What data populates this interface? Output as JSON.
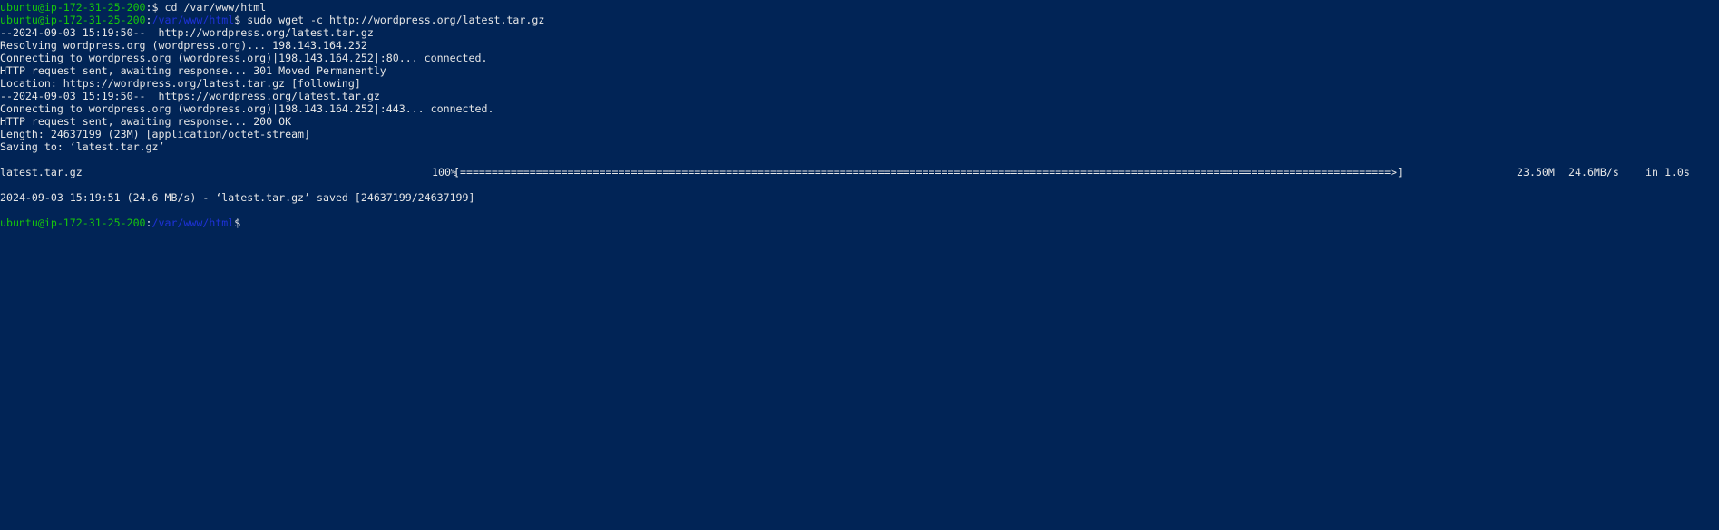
{
  "prompts": [
    {
      "user": "ubuntu@ip-172-31-25-200",
      "sep": ":",
      "path": "",
      "symbol": "$ ",
      "command": "cd /var/www/html"
    },
    {
      "user": "ubuntu@ip-172-31-25-200",
      "sep": ":",
      "path": "/var/www/html",
      "symbol": "$ ",
      "command": "sudo wget -c http://wordpress.org/latest.tar.gz"
    }
  ],
  "output": [
    "--2024-09-03 15:19:50--  http://wordpress.org/latest.tar.gz",
    "Resolving wordpress.org (wordpress.org)... 198.143.164.252",
    "Connecting to wordpress.org (wordpress.org)|198.143.164.252|:80... connected.",
    "HTTP request sent, awaiting response... 301 Moved Permanently",
    "Location: https://wordpress.org/latest.tar.gz [following]",
    "--2024-09-03 15:19:50--  https://wordpress.org/latest.tar.gz",
    "Connecting to wordpress.org (wordpress.org)|198.143.164.252|:443... connected.",
    "HTTP request sent, awaiting response... 200 OK",
    "Length: 24637199 (23M) [application/octet-stream]",
    "Saving to: ‘latest.tar.gz’"
  ],
  "progress": {
    "file": "latest.tar.gz",
    "percent_label": "100%",
    "bar": "[===================================================================================================================================================>]",
    "size": "23.50M",
    "speed": "24.6MB/s",
    "time": "in 1.0s"
  },
  "saved_line": "2024-09-03 15:19:51 (24.6 MB/s) - ‘latest.tar.gz’ saved [24637199/24637199]",
  "final_prompt": {
    "user": "ubuntu@ip-172-31-25-200",
    "sep": ":",
    "path": "/var/www/html",
    "symbol": "$"
  },
  "colors": {
    "background": "#012456",
    "text": "#e6e6e6",
    "user": "#16c60c",
    "path": "#1e32d8"
  }
}
